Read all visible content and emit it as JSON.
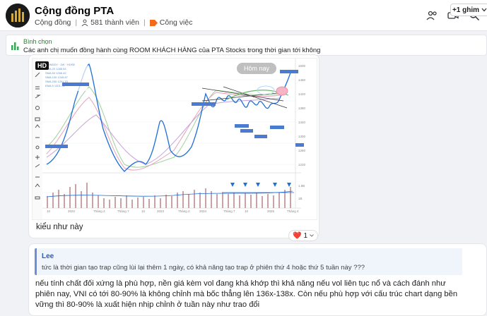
{
  "header": {
    "title": "Cộng đồng PTA",
    "type_label": "Cộng đồng",
    "members": "581 thành viên",
    "work_label": "Công việc",
    "icons": [
      "people-settings-icon",
      "video-call-icon",
      "search-icon"
    ]
  },
  "pinned": {
    "label": "Bình chọn",
    "text": "Các anh chị muốn đồng hành cùng ROOM KHÁCH HÀNG  của PTA Stocks trong thời gian tới không",
    "pins_button": "+1 ghim"
  },
  "message": {
    "badge": "HD",
    "today_button": "Hôm nay",
    "text": "kiểu như này",
    "reaction_icon": "❤️",
    "reaction_count": "1"
  },
  "reply": {
    "quote_author": "Lee",
    "quote_text": "tức là thời gian tạo trap cũng lùi lại thêm 1 ngày, có khả năng tạo trap ở phiên thứ 4 hoặc thứ 5 tuần này ???",
    "text": "nếu tính chất đối xứng là phù hợp, nền giá kèm vol đang khá khớp thì khả năng nếu vol liên tục nổ và cách đánh như phiên nay, VNI có tới 80-90% là không chỉnh mà bốc thẳng lên 136x-138x. Còn nếu phù hợp với cấu trúc chart dạng bền vững thì 80-90% là xuất hiện nhịp chỉnh ở tuần này như trao đổi"
  },
  "colors": {
    "accent": "#2d5bb9",
    "up": "#26a69a",
    "down": "#1e6fd9",
    "volume": "#c9a3a3"
  }
}
